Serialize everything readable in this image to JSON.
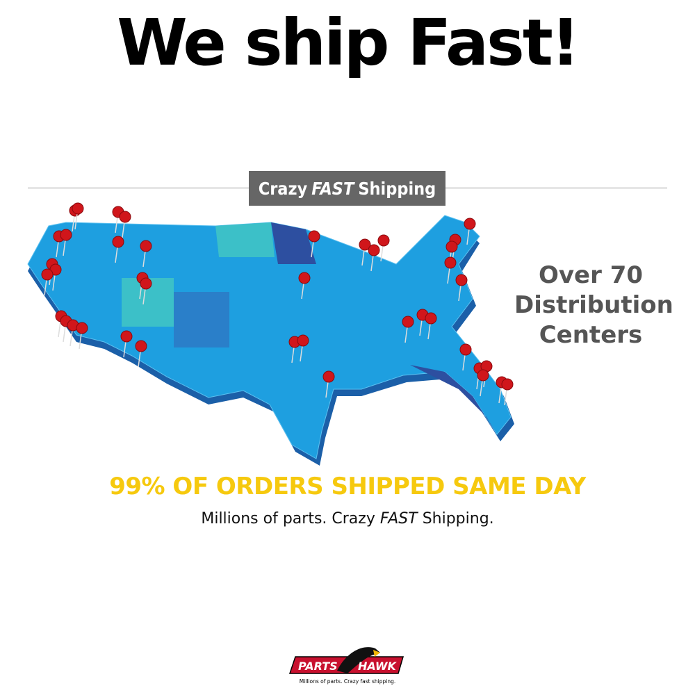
{
  "header": {
    "title": "We ship Fast!"
  },
  "banner": {
    "part1": "Crazy",
    "part2": "FAST",
    "part3": "Shipping"
  },
  "side_text": {
    "line1": "Over 70",
    "line2": "Distribution",
    "line3": "Centers"
  },
  "headline": "99% OF ORDERS SHIPPED SAME DAY",
  "tagline": {
    "part1": "Millions of parts. Crazy",
    "part2": "FAST",
    "part3": "Shipping."
  },
  "logo": {
    "brand_left": "PARTS",
    "brand_right": "HAWK",
    "slogan": "Millions of parts. Crazy fast shipping."
  },
  "colors": {
    "headline": "#f6c90e",
    "map_blue": "#1e9fe0",
    "pin": "#d0161b",
    "banner": "#666666"
  }
}
